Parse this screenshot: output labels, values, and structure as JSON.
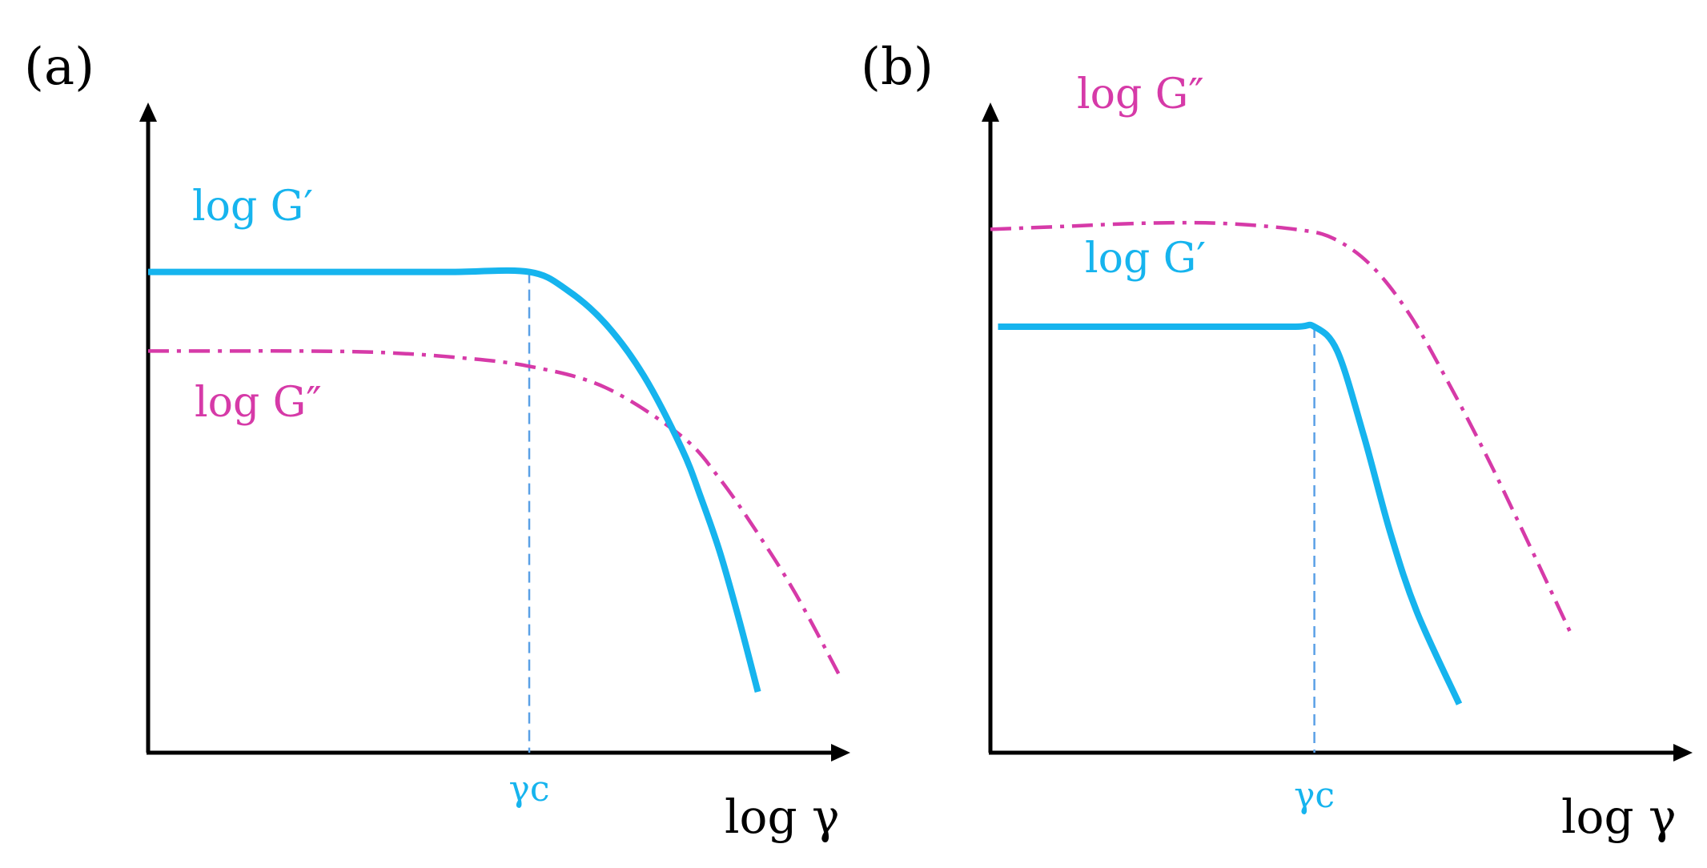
{
  "colors": {
    "g_prime": "#16b4ee",
    "g_double_prime": "#d63aa8",
    "gamma_c_line": "#5aa0e6",
    "axis": "#000000"
  },
  "chart_data": [
    {
      "type": "line",
      "panel_label": "(a)",
      "xlabel": "log γ",
      "ylabel": "",
      "critical_strain_label": "γc",
      "critical_strain_x": 10.0,
      "xlim": [
        0,
        18.6
      ],
      "ylim": [
        0,
        10
      ],
      "grid": false,
      "legend": "none",
      "series": [
        {
          "name": "log G′",
          "color_key": "g_prime",
          "style": "solid",
          "x": [
            0,
            2,
            4,
            6,
            8,
            10,
            11,
            12,
            13,
            14,
            14.5,
            15,
            15.5,
            16
          ],
          "y": [
            7.9,
            7.9,
            7.9,
            7.9,
            7.9,
            7.9,
            7.6,
            7.05,
            6.2,
            5.0,
            4.2,
            3.3,
            2.2,
            1.0
          ]
        },
        {
          "name": "log G″",
          "color_key": "g_double_prime",
          "style": "dashdot",
          "x": [
            0,
            2,
            4,
            6,
            8,
            10,
            12,
            14,
            15,
            16,
            17,
            18.2
          ],
          "y": [
            6.6,
            6.6,
            6.6,
            6.58,
            6.5,
            6.35,
            6.0,
            5.2,
            4.5,
            3.6,
            2.6,
            1.2
          ]
        }
      ]
    },
    {
      "type": "line",
      "panel_label": "(b)",
      "xlabel": "log γ",
      "ylabel": "",
      "critical_strain_label": "γc",
      "critical_strain_x": 8.5,
      "xlim": [
        0,
        18.6
      ],
      "ylim": [
        0,
        10
      ],
      "grid": false,
      "legend": "none",
      "series": [
        {
          "name": "log G′",
          "color_key": "g_prime",
          "style": "solid",
          "x": [
            0.2,
            2,
            4,
            6,
            8,
            8.5,
            9.1,
            9.8,
            10.5,
            11.2,
            12.3
          ],
          "y": [
            7.0,
            7.0,
            7.0,
            7.0,
            7.0,
            7.0,
            6.6,
            5.2,
            3.6,
            2.3,
            0.8
          ]
        },
        {
          "name": "log G″",
          "color_key": "g_double_prime",
          "style": "dashdot",
          "x": [
            0,
            2,
            4,
            6,
            8,
            9,
            10,
            11,
            12,
            13,
            14,
            15.2
          ],
          "y": [
            8.6,
            8.65,
            8.7,
            8.7,
            8.6,
            8.45,
            8.0,
            7.2,
            6.1,
            4.9,
            3.6,
            2.0
          ]
        }
      ]
    }
  ]
}
